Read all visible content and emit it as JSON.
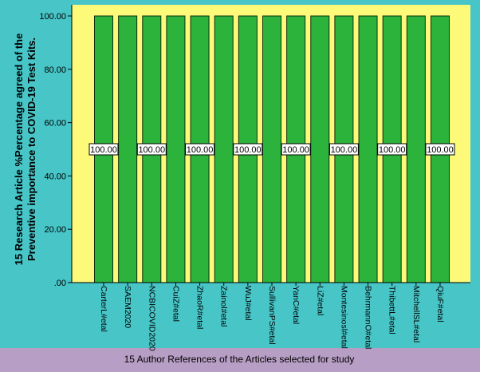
{
  "chart_data": {
    "type": "bar",
    "title": "",
    "xlabel": "15 Author References of the Articles selected for study",
    "ylabel_lines": [
      "15 Research Article %Percentage agreed of the",
      "Preventive importance to COVID-19 Test Kits."
    ],
    "ylim": [
      0,
      100
    ],
    "yticks": [
      ".00",
      "20.00",
      "40.00",
      "60.00",
      "80.00",
      "100.00"
    ],
    "ytick_values": [
      0,
      20,
      40,
      60,
      80,
      100
    ],
    "grid": false,
    "categories": [
      "CarterL#etal",
      "SAEM2020",
      "NCBICOVID2020",
      "CuiZ#etal",
      "ZhaoR#etal",
      "Zainol#etal",
      "WuJ#etal",
      "SullivanPS#etal",
      "YanC#etal",
      "LiZ#etal",
      "Montesinosl#etal",
      "BehrmannO#etal",
      "ThibettL#etal",
      "MitchellSL#etal",
      "QiuF#etal"
    ],
    "values": [
      100,
      100,
      100,
      100,
      100,
      100,
      100,
      100,
      100,
      100,
      100,
      100,
      100,
      100,
      100
    ],
    "data_label_text": "100.00",
    "data_label_every": 2,
    "colors": {
      "background": "#47c5c7",
      "plot_area": "#fdfa7a",
      "bar_fill": "#2cb33c",
      "bar_stroke": "#0d2e10",
      "xlabel_band": "#b79ec5"
    }
  }
}
